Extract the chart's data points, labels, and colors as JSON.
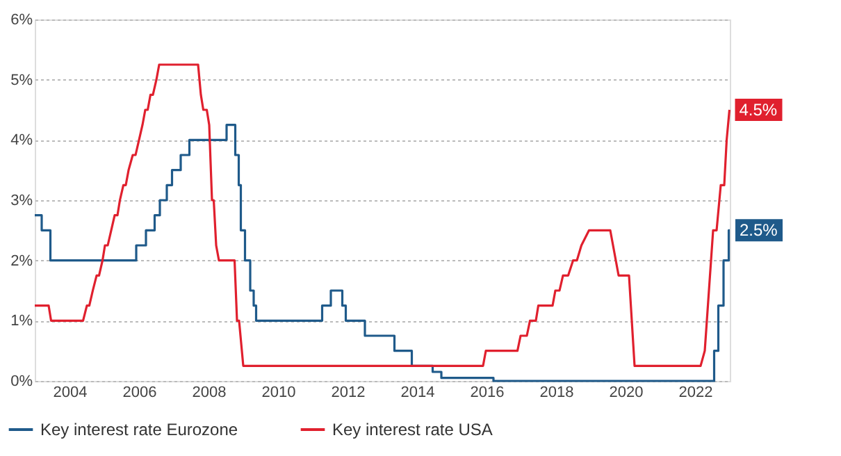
{
  "chart_data": {
    "type": "line",
    "xlim": [
      2003,
      2023
    ],
    "xticks": [
      2004,
      2006,
      2008,
      2010,
      2012,
      2014,
      2016,
      2018,
      2020,
      2022
    ],
    "ylim": [
      0,
      6
    ],
    "yticks": [
      {
        "value": 0,
        "label": "0%"
      },
      {
        "value": 1,
        "label": "1%"
      },
      {
        "value": 2,
        "label": "2%"
      },
      {
        "value": 3,
        "label": "3%"
      },
      {
        "value": 4,
        "label": "4%"
      },
      {
        "value": 5,
        "label": "5%"
      },
      {
        "value": 6,
        "label": "6%"
      }
    ],
    "grid": "y",
    "legend": "bottom left",
    "marker": "none",
    "series": [
      {
        "name": "Key interest rate Eurozone",
        "color": "#1f5a8a",
        "type": "step",
        "x": [
          2003.0,
          2003.2,
          2003.45,
          2005.92,
          2006.2,
          2006.45,
          2006.6,
          2006.8,
          2006.95,
          2007.2,
          2007.45,
          2008.52,
          2008.77,
          2008.87,
          2008.93,
          2009.05,
          2009.2,
          2009.3,
          2009.37,
          2011.27,
          2011.52,
          2011.85,
          2011.95,
          2012.5,
          2013.35,
          2013.85,
          2014.45,
          2014.7,
          2016.2,
          2022.55,
          2022.67,
          2022.82,
          2022.97,
          2023.0
        ],
        "values": [
          2.75,
          2.5,
          2.0,
          2.25,
          2.5,
          2.75,
          3.0,
          3.25,
          3.5,
          3.75,
          4.0,
          4.25,
          3.75,
          3.25,
          2.5,
          2.0,
          1.5,
          1.25,
          1.0,
          1.25,
          1.5,
          1.25,
          1.0,
          0.75,
          0.5,
          0.25,
          0.15,
          0.05,
          0.0,
          0.5,
          1.25,
          2.0,
          2.5,
          2.5
        ],
        "value_labels": [
          null,
          null,
          null,
          null,
          null,
          null,
          null,
          null,
          null,
          null,
          null,
          null,
          null,
          null,
          null,
          null,
          null,
          null,
          null,
          null,
          null,
          null,
          null,
          null,
          null,
          null,
          null,
          null,
          null,
          null,
          null,
          null,
          null,
          "2.5%"
        ]
      },
      {
        "name": "Key interest rate USA",
        "color": "#e0202e",
        "type": "line",
        "x": [
          2003.0,
          2003.4,
          2003.47,
          2004.39,
          2004.5,
          2004.57,
          2004.67,
          2004.78,
          2004.85,
          2004.95,
          2005.02,
          2005.1,
          2005.2,
          2005.3,
          2005.38,
          2005.45,
          2005.55,
          2005.62,
          2005.7,
          2005.82,
          2005.9,
          2006.0,
          2006.1,
          2006.18,
          2006.25,
          2006.33,
          2006.4,
          2006.5,
          2006.58,
          2007.7,
          2007.78,
          2007.85,
          2007.95,
          2008.02,
          2008.1,
          2008.15,
          2008.22,
          2008.3,
          2008.75,
          2008.82,
          2008.88,
          2009.0,
          2015.9,
          2015.98,
          2016.89,
          2016.98,
          2017.16,
          2017.25,
          2017.42,
          2017.49,
          2017.9,
          2017.98,
          2018.1,
          2018.2,
          2018.35,
          2018.49,
          2018.6,
          2018.73,
          2018.95,
          2019.56,
          2019.8,
          2020.1,
          2020.26,
          2022.16,
          2022.28,
          2022.52,
          2022.62,
          2022.74,
          2022.84,
          2022.91,
          2022.99
        ],
        "values": [
          1.25,
          1.25,
          1.0,
          1.0,
          1.25,
          1.25,
          1.5,
          1.75,
          1.75,
          2.0,
          2.25,
          2.25,
          2.5,
          2.75,
          2.75,
          3.0,
          3.25,
          3.25,
          3.5,
          3.75,
          3.75,
          4.0,
          4.25,
          4.5,
          4.5,
          4.75,
          4.75,
          5.0,
          5.25,
          5.25,
          4.75,
          4.5,
          4.5,
          4.25,
          3.0,
          3.0,
          2.25,
          2.0,
          2.0,
          1.0,
          1.0,
          0.25,
          0.25,
          0.5,
          0.5,
          0.75,
          0.75,
          1.0,
          1.0,
          1.25,
          1.25,
          1.5,
          1.5,
          1.75,
          1.75,
          2.0,
          2.0,
          2.25,
          2.5,
          2.5,
          1.75,
          1.75,
          0.25,
          0.25,
          0.5,
          2.5,
          2.5,
          3.25,
          3.25,
          4.0,
          4.5
        ],
        "value_labels": [
          null,
          null,
          null,
          null,
          null,
          null,
          null,
          null,
          null,
          null,
          null,
          null,
          null,
          null,
          null,
          null,
          null,
          null,
          null,
          null,
          null,
          null,
          null,
          null,
          null,
          null,
          null,
          null,
          null,
          null,
          null,
          null,
          null,
          null,
          null,
          null,
          null,
          null,
          null,
          null,
          null,
          null,
          null,
          null,
          null,
          null,
          null,
          null,
          null,
          null,
          null,
          null,
          null,
          null,
          null,
          null,
          null,
          null,
          null,
          null,
          null,
          null,
          null,
          null,
          null,
          null,
          null,
          null,
          null,
          null,
          "4.5%"
        ]
      }
    ]
  }
}
